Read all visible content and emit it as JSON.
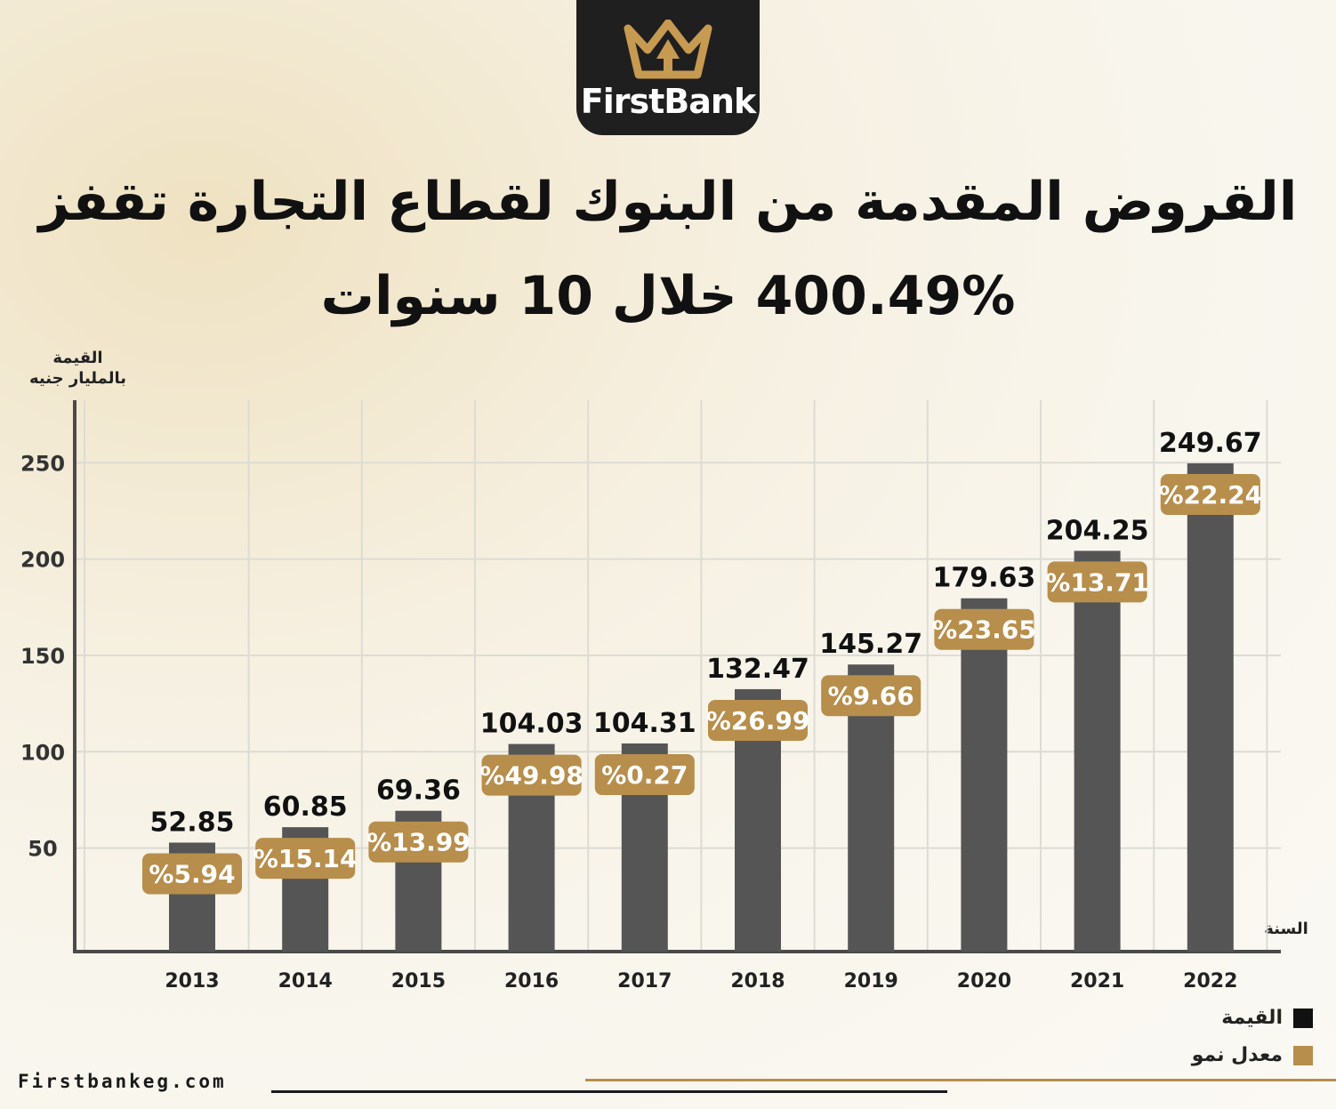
{
  "brand": {
    "name": "FirstBank",
    "website": "Firstbankeg.com"
  },
  "colors": {
    "bar": "#555555",
    "badge": "#b78e4b",
    "grid": "#dcdcd4",
    "axis": "#4a4a4a",
    "text": "#111111"
  },
  "title": {
    "line1": "القروض المقدمة من البنوك لقطاع التجارة تقفز",
    "line2": "400.49% خلال 10 سنوات"
  },
  "axis": {
    "y_title_line1": "القيمة",
    "y_title_line2": "بالمليار جنيه",
    "x_title": "السنة"
  },
  "legend": {
    "value_label": "القيمة",
    "growth_label": "معدل نمو"
  },
  "chart_data": {
    "type": "bar",
    "categories": [
      "2013",
      "2014",
      "2015",
      "2016",
      "2017",
      "2018",
      "2019",
      "2020",
      "2021",
      "2022"
    ],
    "values": [
      52.85,
      60.85,
      69.36,
      104.03,
      104.31,
      132.47,
      145.27,
      179.63,
      204.25,
      249.67
    ],
    "value_labels": [
      "52.85",
      "60.85",
      "69.36",
      "104.03",
      "104.31",
      "132.47",
      "145.27",
      "179.63",
      "204.25",
      "249.67"
    ],
    "growth_labels": [
      "%5.94",
      "%15.14",
      "%13.99",
      "%49.98",
      "%0.27",
      "%26.99",
      "%9.66",
      "%23.65",
      "%13.71",
      "%22.24"
    ],
    "yticks": [
      "50",
      "100",
      "150",
      "200",
      "250"
    ],
    "ylim": [
      0,
      275
    ],
    "grid": true,
    "legend_position": "bottom-right"
  }
}
